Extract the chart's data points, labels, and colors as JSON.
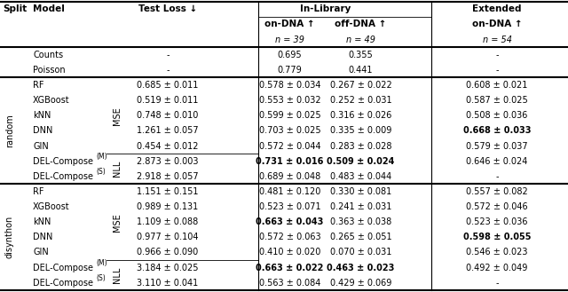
{
  "figsize": [
    6.4,
    3.29
  ],
  "dpi": 100,
  "rows": [
    {
      "split": "",
      "model": "Counts",
      "loss_type": "",
      "test_loss": "-",
      "on_dna_il": "0.695",
      "off_dna_il": "0.355",
      "on_dna_ex": "-",
      "bold": []
    },
    {
      "split": "",
      "model": "Poisson",
      "loss_type": "",
      "test_loss": "-",
      "on_dna_il": "0.779",
      "off_dna_il": "0.441",
      "on_dna_ex": "-",
      "bold": []
    },
    {
      "split": "random",
      "model": "RF",
      "loss_type": "MSE",
      "test_loss": "0.685 ± 0.011",
      "on_dna_il": "0.578 ± 0.034",
      "off_dna_il": "0.267 ± 0.022",
      "on_dna_ex": "0.608 ± 0.021",
      "bold": []
    },
    {
      "split": "random",
      "model": "XGBoost",
      "loss_type": "MSE",
      "test_loss": "0.519 ± 0.011",
      "on_dna_il": "0.553 ± 0.032",
      "off_dna_il": "0.252 ± 0.031",
      "on_dna_ex": "0.587 ± 0.025",
      "bold": []
    },
    {
      "split": "random",
      "model": "kNN",
      "loss_type": "MSE",
      "test_loss": "0.748 ± 0.010",
      "on_dna_il": "0.599 ± 0.025",
      "off_dna_il": "0.316 ± 0.026",
      "on_dna_ex": "0.508 ± 0.036",
      "bold": []
    },
    {
      "split": "random",
      "model": "DNN",
      "loss_type": "MSE",
      "test_loss": "1.261 ± 0.057",
      "on_dna_il": "0.703 ± 0.025",
      "off_dna_il": "0.335 ± 0.009",
      "on_dna_ex": "0.668 ± 0.033",
      "bold": [
        "on_dna_ex"
      ]
    },
    {
      "split": "random",
      "model": "GIN",
      "loss_type": "MSE",
      "test_loss": "0.454 ± 0.012",
      "on_dna_il": "0.572 ± 0.044",
      "off_dna_il": "0.283 ± 0.028",
      "on_dna_ex": "0.579 ± 0.037",
      "bold": []
    },
    {
      "split": "random",
      "model": "DEL-Compose(M)",
      "loss_type": "NLL",
      "test_loss": "2.873 ± 0.003",
      "on_dna_il": "0.731 ± 0.016",
      "off_dna_il": "0.509 ± 0.024",
      "on_dna_ex": "0.646 ± 0.024",
      "bold": [
        "on_dna_il",
        "off_dna_il"
      ]
    },
    {
      "split": "random",
      "model": "DEL-Compose(S)",
      "loss_type": "NLL",
      "test_loss": "2.918 ± 0.057",
      "on_dna_il": "0.689 ± 0.048",
      "off_dna_il": "0.483 ± 0.044",
      "on_dna_ex": "-",
      "bold": []
    },
    {
      "split": "disynthon",
      "model": "RF",
      "loss_type": "MSE",
      "test_loss": "1.151 ± 0.151",
      "on_dna_il": "0.481 ± 0.120",
      "off_dna_il": "0.330 ± 0.081",
      "on_dna_ex": "0.557 ± 0.082",
      "bold": []
    },
    {
      "split": "disynthon",
      "model": "XGBoost",
      "loss_type": "MSE",
      "test_loss": "0.989 ± 0.131",
      "on_dna_il": "0.523 ± 0.071",
      "off_dna_il": "0.241 ± 0.031",
      "on_dna_ex": "0.572 ± 0.046",
      "bold": []
    },
    {
      "split": "disynthon",
      "model": "kNN",
      "loss_type": "MSE",
      "test_loss": "1.109 ± 0.088",
      "on_dna_il": "0.663 ± 0.043",
      "off_dna_il": "0.363 ± 0.038",
      "on_dna_ex": "0.523 ± 0.036",
      "bold": [
        "on_dna_il"
      ]
    },
    {
      "split": "disynthon",
      "model": "DNN",
      "loss_type": "MSE",
      "test_loss": "0.977 ± 0.104",
      "on_dna_il": "0.572 ± 0.063",
      "off_dna_il": "0.265 ± 0.051",
      "on_dna_ex": "0.598 ± 0.055",
      "bold": [
        "on_dna_ex"
      ]
    },
    {
      "split": "disynthon",
      "model": "GIN",
      "loss_type": "MSE",
      "test_loss": "0.966 ± 0.090",
      "on_dna_il": "0.410 ± 0.020",
      "off_dna_il": "0.070 ± 0.031",
      "on_dna_ex": "0.546 ± 0.023",
      "bold": []
    },
    {
      "split": "disynthon",
      "model": "DEL-Compose(M)",
      "loss_type": "NLL",
      "test_loss": "3.184 ± 0.025",
      "on_dna_il": "0.663 ± 0.022",
      "off_dna_il": "0.463 ± 0.023",
      "on_dna_ex": "0.492 ± 0.049",
      "bold": [
        "on_dna_il",
        "off_dna_il"
      ]
    },
    {
      "split": "disynthon",
      "model": "DEL-Compose(S)",
      "loss_type": "NLL",
      "test_loss": "3.110 ± 0.041",
      "on_dna_il": "0.563 ± 0.084",
      "off_dna_il": "0.429 ± 0.069",
      "on_dna_ex": "-",
      "bold": []
    }
  ]
}
